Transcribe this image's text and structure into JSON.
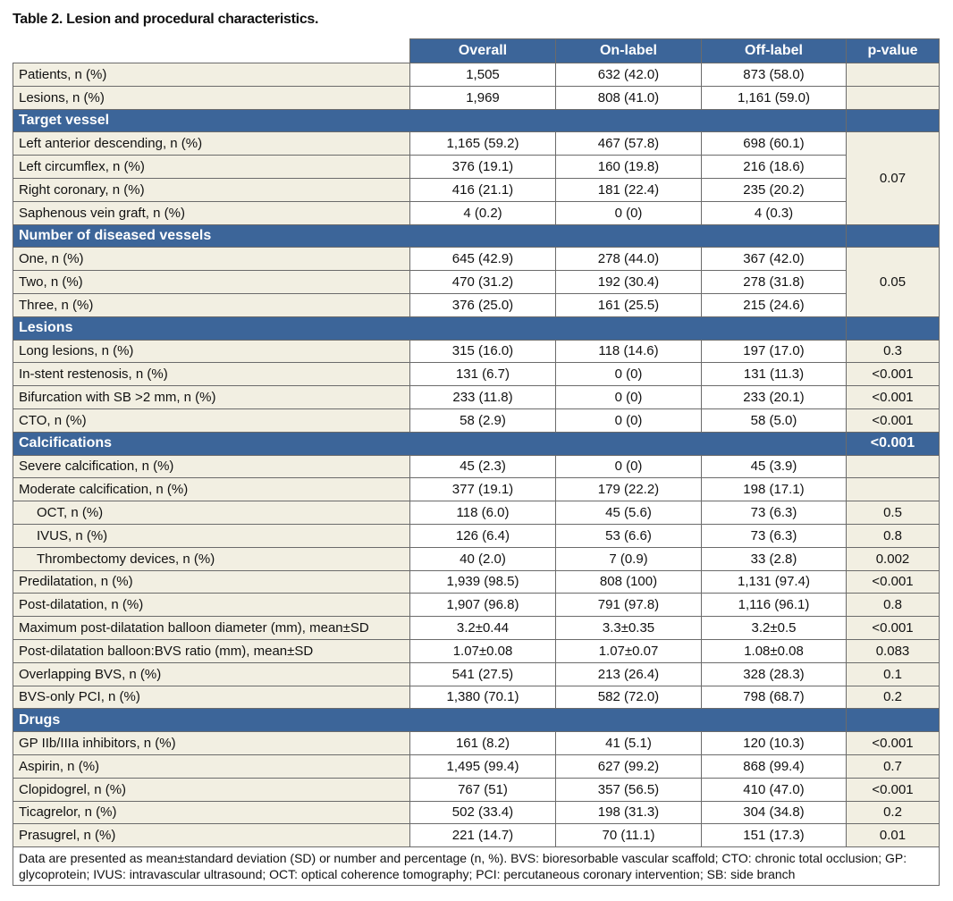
{
  "title": "Table 2. Lesion and procedural characteristics.",
  "columns": [
    "Overall",
    "On-label",
    "Off-label",
    "p-value"
  ],
  "groups": [
    {
      "rows": [
        {
          "cells": [
            "Patients, n (%)",
            "1,505",
            "632 (42.0)",
            "873 (58.0)"
          ]
        },
        {
          "cells": [
            "Lesions, n (%)",
            "1,969",
            "808 (41.0)",
            "1,161 (59.0)"
          ]
        }
      ]
    },
    {
      "heading": "Target vessel",
      "merged_p": "0.07",
      "rows": [
        {
          "cells": [
            "Left anterior descending, n (%)",
            "1,165 (59.2)",
            "467 (57.8)",
            "698 (60.1)"
          ]
        },
        {
          "cells": [
            "Left circumflex, n (%)",
            "376 (19.1)",
            "160 (19.8)",
            "216 (18.6)"
          ]
        },
        {
          "cells": [
            "Right coronary, n (%)",
            "416 (21.1)",
            "181 (22.4)",
            "235 (20.2)"
          ]
        },
        {
          "cells": [
            "Saphenous vein graft, n (%)",
            "4 (0.2)",
            "0 (0)",
            "4 (0.3)"
          ]
        }
      ]
    },
    {
      "heading": "Number of diseased vessels",
      "merged_p": "0.05",
      "rows": [
        {
          "cells": [
            "One, n (%)",
            "645 (42.9)",
            "278 (44.0)",
            "367 (42.0)"
          ]
        },
        {
          "cells": [
            "Two, n (%)",
            "470 (31.2)",
            "192 (30.4)",
            "278 (31.8)"
          ]
        },
        {
          "cells": [
            "Three, n (%)",
            "376 (25.0)",
            "161 (25.5)",
            "215 (24.6)"
          ]
        }
      ]
    },
    {
      "heading": "Lesions",
      "rows": [
        {
          "cells": [
            "Long lesions, n (%)",
            "315 (16.0)",
            "118 (14.6)",
            "197 (17.0)",
            "0.3"
          ]
        },
        {
          "cells": [
            "In-stent restenosis, n (%)",
            "131 (6.7)",
            "0 (0)",
            "131 (11.3)",
            "<0.001"
          ]
        },
        {
          "cells": [
            "Bifurcation with SB >2 mm, n (%)",
            "233 (11.8)",
            "0 (0)",
            "233 (20.1)",
            "<0.001"
          ]
        },
        {
          "cells": [
            "CTO, n (%)",
            "58 (2.9)",
            "0 (0)",
            "58 (5.0)",
            "<0.001"
          ]
        }
      ]
    },
    {
      "heading": "Calcifications",
      "heading_p": "<0.001",
      "rows": [
        {
          "cells": [
            "Severe calcification, n (%)",
            "45 (2.3)",
            "0 (0)",
            "45 (3.9)"
          ]
        },
        {
          "cells": [
            "Moderate calcification, n (%)",
            "377 (19.1)",
            "179 (22.2)",
            "198 (17.1)"
          ]
        },
        {
          "indent": true,
          "cells": [
            "OCT, n (%)",
            "118 (6.0)",
            "45 (5.6)",
            "73 (6.3)",
            "0.5"
          ]
        },
        {
          "indent": true,
          "cells": [
            "IVUS, n (%)",
            "126 (6.4)",
            "53 (6.6)",
            "73 (6.3)",
            "0.8"
          ]
        },
        {
          "indent": true,
          "cells": [
            "Thrombectomy devices, n (%)",
            "40 (2.0)",
            "7 (0.9)",
            "33 (2.8)",
            "0.002"
          ]
        },
        {
          "cells": [
            "Predilatation, n (%)",
            "1,939 (98.5)",
            "808 (100)",
            "1,131 (97.4)",
            "<0.001"
          ]
        },
        {
          "cells": [
            "Post-dilatation, n (%)",
            "1,907 (96.8)",
            "791 (97.8)",
            "1,116 (96.1)",
            "0.8"
          ]
        },
        {
          "cells": [
            "Maximum post-dilatation balloon diameter (mm), mean±SD",
            "3.2±0.44",
            "3.3±0.35",
            "3.2±0.5",
            "<0.001"
          ]
        },
        {
          "cells": [
            "Post-dilatation balloon:BVS ratio (mm), mean±SD",
            "1.07±0.08",
            "1.07±0.07",
            "1.08±0.08",
            "0.083"
          ]
        },
        {
          "cells": [
            "Overlapping BVS, n (%)",
            "541 (27.5)",
            "213 (26.4)",
            "328 (28.3)",
            "0.1"
          ]
        },
        {
          "cells": [
            "BVS-only PCI, n (%)",
            "1,380 (70.1)",
            "582 (72.0)",
            "798 (68.7)",
            "0.2"
          ]
        }
      ]
    },
    {
      "heading": "Drugs",
      "rows": [
        {
          "cells": [
            "GP IIb/IIIa inhibitors, n (%)",
            "161 (8.2)",
            "41 (5.1)",
            "120 (10.3)",
            "<0.001"
          ]
        },
        {
          "cells": [
            "Aspirin, n (%)",
            "1,495 (99.4)",
            "627 (99.2)",
            "868 (99.4)",
            "0.7"
          ]
        },
        {
          "cells": [
            "Clopidogrel, n (%)",
            "767 (51)",
            "357 (56.5)",
            "410 (47.0)",
            "<0.001"
          ]
        },
        {
          "cells": [
            "Ticagrelor, n (%)",
            "502 (33.4)",
            "198 (31.3)",
            "304 (34.8)",
            "0.2"
          ]
        },
        {
          "cells": [
            "Prasugrel, n (%)",
            "221 (14.7)",
            "70 (11.1)",
            "151 (17.3)",
            "0.01"
          ]
        }
      ]
    }
  ],
  "footnote": "Data are presented as mean±standard deviation (SD) or number and percentage (n, %). BVS: bioresorbable vascular scaffold; CTO: chronic total occlusion; GP: glycoprotein; IVUS: intravascular ultrasound; OCT: optical coherence tomography; PCI: percutaneous coronary intervention; SB: side branch"
}
